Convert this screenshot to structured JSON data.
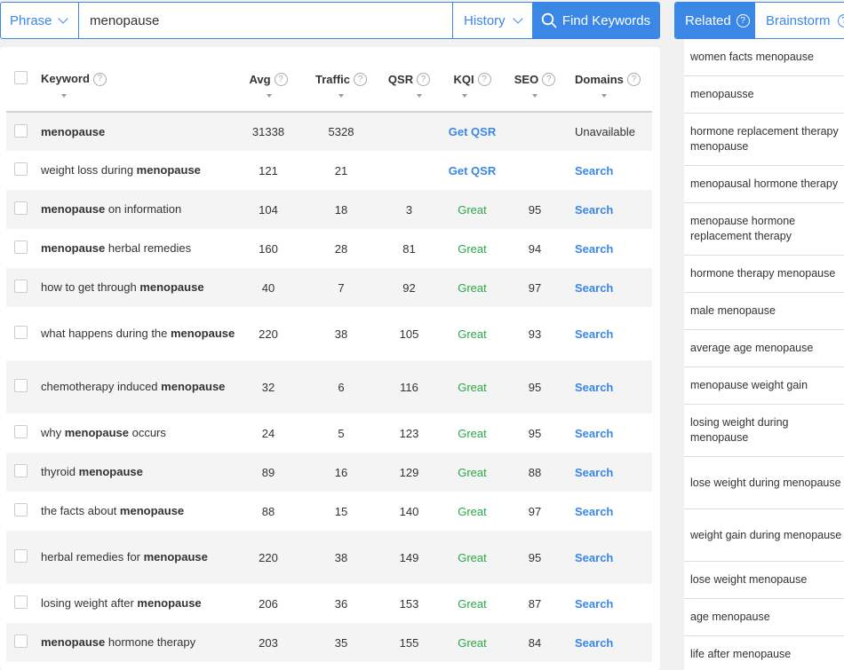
{
  "search": {
    "mode_label": "Phrase",
    "query": "menopause",
    "history_label": "History",
    "find_label": "Find Keywords"
  },
  "table": {
    "headers": {
      "keyword": "Keyword",
      "avg": "Avg",
      "traffic": "Traffic",
      "qsr": "QSR",
      "kqi": "KQI",
      "seo": "SEO",
      "domains": "Domains"
    },
    "rows": [
      {
        "kw_pre": "",
        "kw_bold": "menopause",
        "kw_post": "",
        "avg": "31338",
        "traffic": "5328",
        "qsr": "",
        "kqi": "Get QSR",
        "kqi_type": "link",
        "seo": "",
        "domains": "Unavailable",
        "domains_type": "text"
      },
      {
        "kw_pre": "weight loss during ",
        "kw_bold": "menopause",
        "kw_post": "",
        "avg": "121",
        "traffic": "21",
        "qsr": "",
        "kqi": "Get QSR",
        "kqi_type": "link",
        "seo": "",
        "domains": "Search",
        "domains_type": "link"
      },
      {
        "kw_pre": "",
        "kw_bold": "menopause",
        "kw_post": " on information",
        "avg": "104",
        "traffic": "18",
        "qsr": "3",
        "kqi": "Great",
        "kqi_type": "great",
        "seo": "95",
        "domains": "Search",
        "domains_type": "link"
      },
      {
        "kw_pre": "",
        "kw_bold": "menopause",
        "kw_post": " herbal remedies",
        "avg": "160",
        "traffic": "28",
        "qsr": "81",
        "kqi": "Great",
        "kqi_type": "great",
        "seo": "94",
        "domains": "Search",
        "domains_type": "link"
      },
      {
        "kw_pre": "how to get through ",
        "kw_bold": "menopause",
        "kw_post": "",
        "avg": "40",
        "traffic": "7",
        "qsr": "92",
        "kqi": "Great",
        "kqi_type": "great",
        "seo": "97",
        "domains": "Search",
        "domains_type": "link"
      },
      {
        "kw_pre": "what happens during the ",
        "kw_bold": "menopause",
        "kw_post": "",
        "avg": "220",
        "traffic": "38",
        "qsr": "105",
        "kqi": "Great",
        "kqi_type": "great",
        "seo": "93",
        "domains": "Search",
        "domains_type": "link"
      },
      {
        "kw_pre": "chemotherapy induced ",
        "kw_bold": "menopause",
        "kw_post": "",
        "avg": "32",
        "traffic": "6",
        "qsr": "116",
        "kqi": "Great",
        "kqi_type": "great",
        "seo": "95",
        "domains": "Search",
        "domains_type": "link"
      },
      {
        "kw_pre": "why ",
        "kw_bold": "menopause",
        "kw_post": " occurs",
        "avg": "24",
        "traffic": "5",
        "qsr": "123",
        "kqi": "Great",
        "kqi_type": "great",
        "seo": "95",
        "domains": "Search",
        "domains_type": "link"
      },
      {
        "kw_pre": "thyroid ",
        "kw_bold": "menopause",
        "kw_post": "",
        "avg": "89",
        "traffic": "16",
        "qsr": "129",
        "kqi": "Great",
        "kqi_type": "great",
        "seo": "88",
        "domains": "Search",
        "domains_type": "link"
      },
      {
        "kw_pre": "the facts about ",
        "kw_bold": "menopause",
        "kw_post": "",
        "avg": "88",
        "traffic": "15",
        "qsr": "140",
        "kqi": "Great",
        "kqi_type": "great",
        "seo": "97",
        "domains": "Search",
        "domains_type": "link"
      },
      {
        "kw_pre": "herbal remedies for ",
        "kw_bold": "menopause",
        "kw_post": "",
        "avg": "220",
        "traffic": "38",
        "qsr": "149",
        "kqi": "Great",
        "kqi_type": "great",
        "seo": "95",
        "domains": "Search",
        "domains_type": "link"
      },
      {
        "kw_pre": "losing weight after ",
        "kw_bold": "menopause",
        "kw_post": "",
        "avg": "206",
        "traffic": "36",
        "qsr": "153",
        "kqi": "Great",
        "kqi_type": "great",
        "seo": "87",
        "domains": "Search",
        "domains_type": "link"
      },
      {
        "kw_pre": "",
        "kw_bold": "menopause",
        "kw_post": " hormone therapy",
        "avg": "203",
        "traffic": "35",
        "qsr": "155",
        "kqi": "Great",
        "kqi_type": "great",
        "seo": "84",
        "domains": "Search",
        "domains_type": "link"
      }
    ]
  },
  "related": {
    "tab_related": "Related",
    "tab_brainstorm": "Brainstorm",
    "items": [
      "women facts menopause",
      "menopausse",
      "hormone replacement therapy menopause",
      "menopausal hormone therapy",
      "menopause hormone replacement therapy",
      "hormone therapy menopause",
      "male menopause",
      "average age menopause",
      "menopause weight gain",
      "losing weight during menopause",
      "lose weight during menopause",
      "weight gain during menopause",
      "lose weight menopause",
      "age menopause",
      "life after menopause"
    ]
  },
  "icons": {
    "help": "question-circle-icon",
    "search": "search-icon",
    "dropdown": "chevron-down-icon"
  },
  "colors": {
    "accent": "#3a87e6",
    "great": "#2aa64a",
    "row_alt": "#f4f4f4"
  }
}
